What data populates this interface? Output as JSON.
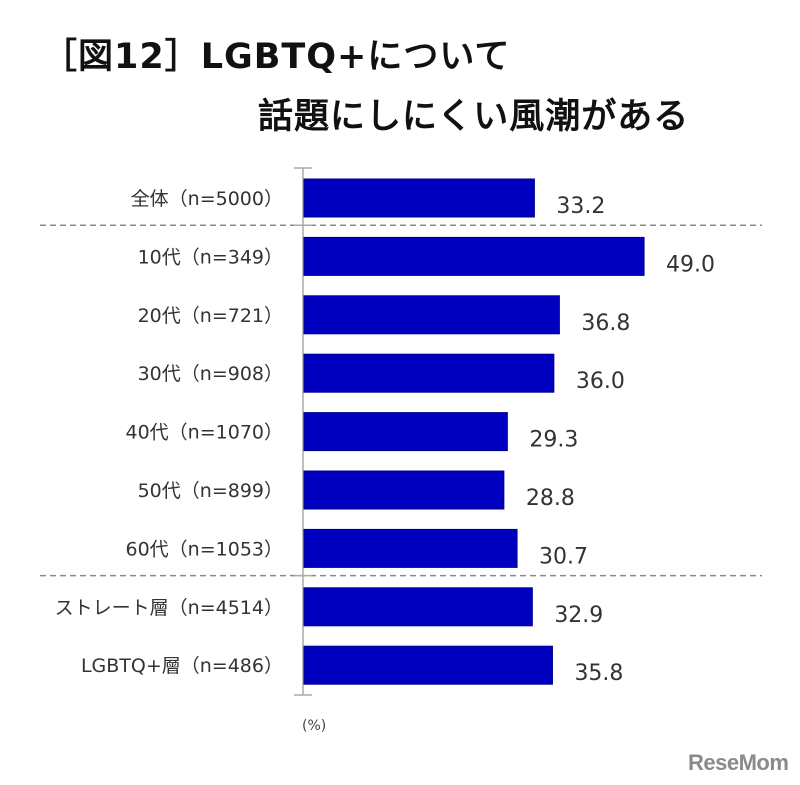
{
  "title_line1": "［図12］LGBTQ+について",
  "title_line2": "話題にしにくい風潮がある",
  "unit_label": "(%)",
  "logo_text": "ReseMom",
  "chart_data": {
    "type": "bar",
    "orientation": "horizontal",
    "categories": [
      "全体（n=5000）",
      "10代（n=349）",
      "20代（n=721）",
      "30代（n=908）",
      "40代（n=1070）",
      "50代（n=899）",
      "60代（n=1053）",
      "ストレート層（n=4514）",
      "LGBTQ+層（n=486）"
    ],
    "values": [
      33.2,
      49.0,
      36.8,
      36.0,
      29.3,
      28.8,
      30.7,
      32.9,
      35.8
    ],
    "value_labels": [
      "33.2",
      "49.0",
      "36.8",
      "36.0",
      "29.3",
      "28.8",
      "30.7",
      "32.9",
      "35.8"
    ],
    "ylabel": "(%)",
    "xlim": [
      0,
      55
    ],
    "separators_after": [
      0,
      6
    ],
    "grid": false,
    "bar_color": "#0000c0"
  }
}
